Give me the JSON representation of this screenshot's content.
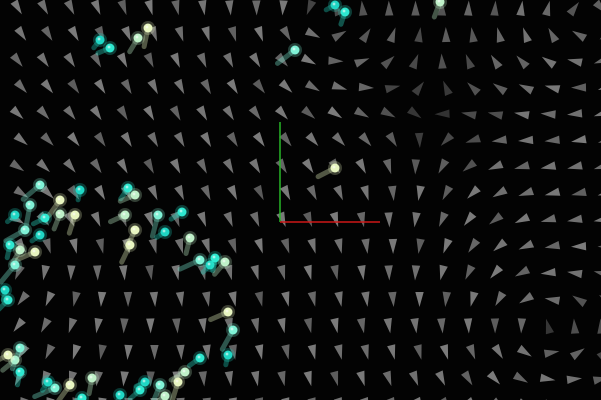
{
  "scene": {
    "background_color": "#030303",
    "arrow_color": "#9a9a9a",
    "particle_colors": [
      "#1fd6c4",
      "#2ee8d0",
      "#bff0c8",
      "#e8f5c0",
      "#7ff2d6"
    ],
    "axes": {
      "x_axis_color": "#d01818",
      "y_axis_color": "#28b828"
    },
    "icons": {
      "field_arrow": "triangle-arrow-icon",
      "particle": "glowing-streak-icon"
    }
  }
}
